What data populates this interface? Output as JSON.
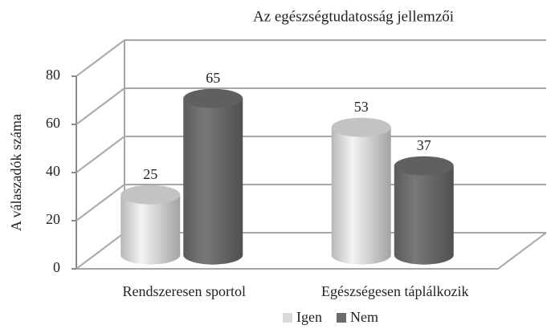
{
  "chart_data": {
    "type": "bar3d",
    "title": "Az egészségtudatosság jellemzői",
    "y_label": "A válaszadók száma",
    "categories": [
      "Rendszeresen sportol",
      "Egészségesen táplálkozik"
    ],
    "series": [
      {
        "name": "Igen",
        "color": "#d9d9d9",
        "values": [
          25,
          53
        ]
      },
      {
        "name": "Nem",
        "color": "#6b6b6b",
        "values": [
          65,
          37
        ]
      }
    ],
    "ylim": [
      0,
      80
    ],
    "yticks": [
      0,
      20,
      40,
      60,
      80
    ],
    "grid": true,
    "legend": "bottom"
  }
}
